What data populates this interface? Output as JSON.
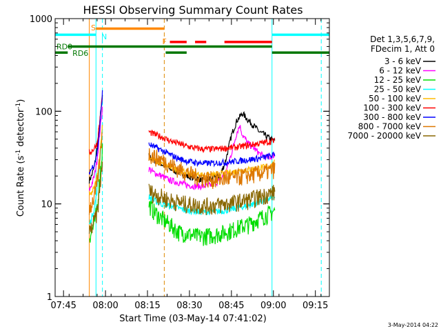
{
  "chart_data": {
    "type": "line",
    "title": "HESSI Observing Summary Count Rates",
    "xlabel": "Start Time (03-May-14 07:41:02)",
    "ylabel": "Count Rate (s⁻¹ detector⁻¹)",
    "ylabel_text": "Count Rate (s",
    "ylabel_sup1": "-1",
    "ylabel_mid": " detector",
    "ylabel_sup2": "-1",
    "ylabel_end": ")",
    "yscale": "log",
    "ylim": [
      1,
      1000
    ],
    "xlim_minutes": [
      -3,
      95
    ],
    "x_ticks": [
      {
        "m": 0,
        "label": "07:45"
      },
      {
        "m": 15,
        "label": "08:00"
      },
      {
        "m": 30,
        "label": "08:15"
      },
      {
        "m": 45,
        "label": "08:30"
      },
      {
        "m": 60,
        "label": "08:45"
      },
      {
        "m": 75,
        "label": "09:00"
      },
      {
        "m": 90,
        "label": "09:15"
      }
    ],
    "y_ticks": [
      {
        "v": 1,
        "label": "1"
      },
      {
        "v": 10,
        "label": "10"
      },
      {
        "v": 100,
        "label": "100"
      },
      {
        "v": 1000,
        "label": "1000"
      }
    ],
    "legend": {
      "header1": "Det 1,3,5,6,7,9,",
      "header2": "FDecim 1, Att 0",
      "position": "right"
    },
    "series": [
      {
        "name": "3 - 6 keV",
        "color": "#000000",
        "segments": [
          {
            "x": [
              9.2,
              10,
              11,
              12,
              13,
              13.9
            ],
            "y": [
              18,
              20,
              25,
              40,
              80,
              140
            ]
          },
          {
            "x": [
              30.5,
              32,
              35,
              38,
              41,
              44,
              47,
              50,
              53,
              56,
              58,
              60,
              62,
              64,
              66,
              68,
              70,
              72,
              74,
              75.5
            ],
            "y": [
              33,
              30,
              27,
              24,
              22,
              20,
              19,
              18,
              19,
              20,
              30,
              55,
              80,
              95,
              80,
              70,
              60,
              55,
              50,
              48
            ]
          }
        ]
      },
      {
        "name": "6 - 12 keV",
        "color": "#ff00ff",
        "segments": [
          {
            "x": [
              9.2,
              10,
              11,
              12,
              13,
              13.9
            ],
            "y": [
              14,
              16,
              20,
              30,
              60,
              110
            ]
          },
          {
            "x": [
              30.5,
              32,
              35,
              38,
              41,
              44,
              47,
              50,
              53,
              56,
              58,
              60,
              62,
              63,
              64,
              66,
              68,
              70,
              72,
              74,
              75.5
            ],
            "y": [
              24,
              22,
              20,
              18,
              17,
              16,
              15.5,
              15.5,
              16,
              18,
              22,
              35,
              60,
              70,
              55,
              45,
              40,
              35,
              32,
              32,
              34
            ]
          }
        ]
      },
      {
        "name": "12 - 25 keV",
        "color": "#00dd00",
        "segments": [
          {
            "x": [
              9.2,
              10,
              11,
              12,
              13,
              13.9
            ],
            "y": [
              4.5,
              5,
              6,
              9,
              20,
              40
            ]
          },
          {
            "x": [
              30.5,
              32,
              35,
              38,
              41,
              44,
              47,
              50,
              53,
              56,
              58,
              60,
              62,
              64,
              66,
              68,
              70,
              72,
              74,
              75.5
            ],
            "y": [
              10,
              8.5,
              7,
              6,
              5,
              4.8,
              4.5,
              4.5,
              4.6,
              4.8,
              5,
              5.2,
              5.5,
              5.8,
              6,
              6.5,
              7,
              7.5,
              8,
              8.5
            ]
          }
        ]
      },
      {
        "name": "25 - 50 keV",
        "color": "#00ffff",
        "segments": [
          {
            "x": [
              9.2,
              10,
              11,
              12,
              13,
              13.9
            ],
            "y": [
              6,
              7,
              9,
              14,
              30,
              70
            ]
          },
          {
            "x": [
              30.5,
              32,
              35,
              38,
              41,
              44,
              47,
              50,
              53,
              56,
              58,
              60,
              62,
              64,
              66,
              68,
              70,
              72,
              74,
              75.5
            ],
            "y": [
              12,
              11,
              10,
              9.5,
              9,
              8.5,
              8.3,
              8.2,
              8.2,
              8.3,
              8.5,
              8.8,
              9,
              9.3,
              9.6,
              10,
              10.5,
              11,
              11.5,
              12
            ]
          }
        ]
      },
      {
        "name": "50 - 100 keV",
        "color": "#ffbb00",
        "segments": [
          {
            "x": [
              9.2,
              10,
              11,
              12,
              13,
              13.9
            ],
            "y": [
              12,
              13,
              15,
              20,
              35,
              70
            ]
          },
          {
            "x": [
              30.5,
              32,
              35,
              38,
              41,
              44,
              47,
              50,
              53,
              56,
              58,
              60,
              62,
              64,
              66,
              68,
              70,
              72,
              74,
              75.5
            ],
            "y": [
              32,
              30,
              27,
              25,
              23,
              22,
              21,
              20.5,
              20.5,
              21,
              21.5,
              22,
              22.5,
              23,
              23.5,
              24,
              24.5,
              25,
              26,
              28
            ]
          }
        ]
      },
      {
        "name": "100 - 300 keV",
        "color": "#ff0000",
        "segments": [
          {
            "x": [
              9.2,
              10,
              11,
              12,
              13,
              13.9
            ],
            "y": [
              36,
              37,
              40,
              45,
              80,
              150
            ]
          },
          {
            "x": [
              30.5,
              32,
              35,
              38,
              41,
              44,
              47,
              50,
              53,
              56,
              58,
              60,
              62,
              64,
              66,
              68,
              70,
              72,
              74,
              75.5
            ],
            "y": [
              60,
              57,
              53,
              48,
              45,
              42,
              40,
              39,
              39,
              39.5,
              40,
              40.5,
              41,
              42,
              43,
              44,
              45,
              46,
              47,
              48
            ]
          }
        ]
      },
      {
        "name": "300 - 800 keV",
        "color": "#0000ff",
        "segments": [
          {
            "x": [
              9.2,
              10,
              11,
              12,
              13,
              13.9
            ],
            "y": [
              22,
              24,
              27,
              35,
              70,
              160
            ]
          },
          {
            "x": [
              30.5,
              32,
              35,
              38,
              41,
              44,
              47,
              50,
              53,
              56,
              58,
              60,
              62,
              64,
              66,
              68,
              70,
              72,
              74,
              75.5
            ],
            "y": [
              44,
              42,
              38,
              34,
              31,
              29,
              28,
              27.5,
              27.5,
              28,
              28,
              28.5,
              29,
              29.5,
              30,
              30.5,
              31,
              32,
              33,
              34
            ]
          }
        ]
      },
      {
        "name": "800 - 7000 keV",
        "color": "#dd7700",
        "segments": [
          {
            "x": [
              9.2,
              10,
              11,
              12,
              13,
              13.9
            ],
            "y": [
              9,
              10,
              12,
              16,
              30,
              65
            ]
          },
          {
            "x": [
              30.5,
              32,
              35,
              38,
              41,
              44,
              47,
              50,
              53,
              56,
              58,
              60,
              62,
              64,
              66,
              68,
              70,
              72,
              74,
              75.5
            ],
            "y": [
              35,
              33,
              30,
              27,
              24,
              22,
              20,
              19,
              18.5,
              18.5,
              18.8,
              19,
              19.5,
              20,
              20.5,
              21,
              21.5,
              22,
              23,
              24
            ]
          }
        ]
      },
      {
        "name": "7000 - 20000 keV",
        "color": "#886600",
        "segments": [
          {
            "x": [
              9.2,
              10,
              11,
              12,
              13,
              13.9
            ],
            "y": [
              5,
              5.5,
              6.5,
              8,
              15,
              30
            ]
          },
          {
            "x": [
              30.5,
              32,
              35,
              38,
              41,
              44,
              47,
              50,
              53,
              56,
              58,
              60,
              62,
              64,
              66,
              68,
              70,
              72,
              74,
              75.5
            ],
            "y": [
              14,
              13,
              12,
              11,
              10.5,
              10,
              9.8,
              9.6,
              9.6,
              9.8,
              10,
              10.2,
              10.5,
              10.8,
              11,
              11.5,
              12,
              12.5,
              13,
              13.5
            ]
          }
        ]
      }
    ],
    "annotations": {
      "vlines": [
        {
          "m": 9.2,
          "color": "#ff8800",
          "dash": false
        },
        {
          "m": 11.6,
          "color": "#00ffff",
          "dash": false
        },
        {
          "m": 13.9,
          "color": "#00ffff",
          "dash": true
        },
        {
          "m": 36.0,
          "color": "#dd8800",
          "dash": true
        },
        {
          "m": 74.5,
          "color": "#00ffff",
          "dash": false
        },
        {
          "m": 92.1,
          "color": "#00ffff",
          "dash": true
        }
      ],
      "bars": [
        {
          "name": "saa",
          "color": "#ff8800",
          "y": 780,
          "segments": [
            [
              11.6,
              36.0
            ]
          ]
        },
        {
          "name": "night",
          "color": "#00ffff",
          "y": 670,
          "segments": [
            [
              -3,
              11.6
            ],
            [
              74.5,
              95
            ]
          ]
        },
        {
          "name": "flare",
          "color": "#ff0000",
          "y": 560,
          "segments": [
            [
              38.0,
              44.0
            ],
            [
              47.0,
              51.0
            ],
            [
              57.5,
              74.5
            ]
          ]
        },
        {
          "name": "rd0",
          "color": "#007700",
          "y": 500,
          "segments": [
            [
              1.5,
              74.5
            ]
          ]
        },
        {
          "name": "rd6",
          "color": "#007700",
          "y": 430,
          "segments": [
            [
              -3,
              1.5
            ],
            [
              36.5,
              44.0
            ],
            [
              74.5,
              95
            ]
          ]
        }
      ],
      "labels": [
        {
          "text": "S",
          "m": 9.8,
          "v": 800,
          "color": "#ff8800"
        },
        {
          "text": "N",
          "m": 13.5,
          "v": 640,
          "color": "#00ffff"
        },
        {
          "text": "F",
          "m": 35.3,
          "v": 570,
          "color": "#ff8800"
        },
        {
          "text": "RD0",
          "m": -2.5,
          "v": 500,
          "color": "#007700"
        },
        {
          "text": "RD6",
          "m": 3.2,
          "v": 425,
          "color": "#007700"
        }
      ]
    },
    "footer_date": "3-May-2014 04:22"
  }
}
